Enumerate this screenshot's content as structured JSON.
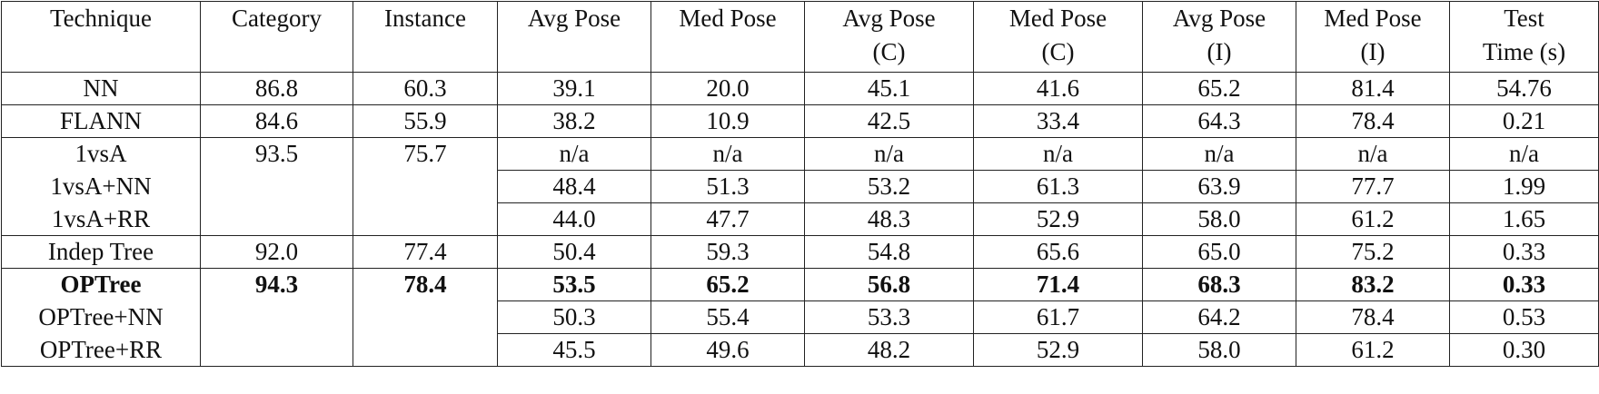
{
  "table": {
    "header": [
      [
        "Technique"
      ],
      [
        "Category"
      ],
      [
        "Instance"
      ],
      [
        "Avg Pose"
      ],
      [
        "Med Pose"
      ],
      [
        "Avg Pose",
        "(C)"
      ],
      [
        "Med Pose",
        "(C)"
      ],
      [
        "Avg Pose",
        "(I)"
      ],
      [
        "Med Pose",
        "(I)"
      ],
      [
        "Test",
        "Time (s)"
      ]
    ],
    "rows": [
      {
        "cells": [
          "NN",
          "86.8",
          "60.3",
          "39.1",
          "20.0",
          "45.1",
          "41.6",
          "65.2",
          "81.4",
          "54.76"
        ]
      },
      {
        "cells": [
          "FLANN",
          "84.6",
          "55.9",
          "38.2",
          "10.9",
          "42.5",
          "33.4",
          "64.3",
          "78.4",
          "0.21"
        ]
      },
      {
        "cells": [
          "1vsA",
          "93.5",
          "75.7",
          "n/a",
          "n/a",
          "n/a",
          "n/a",
          "n/a",
          "n/a",
          "n/a"
        ]
      },
      {
        "cells": [
          "1vsA+NN",
          null,
          null,
          "48.4",
          "51.3",
          "53.2",
          "61.3",
          "63.9",
          "77.7",
          "1.99"
        ]
      },
      {
        "cells": [
          "1vsA+RR",
          null,
          null,
          "44.0",
          "47.7",
          "48.3",
          "52.9",
          "58.0",
          "61.2",
          "1.65"
        ]
      },
      {
        "cells": [
          "Indep Tree",
          "92.0",
          "77.4",
          "50.4",
          "59.3",
          "54.8",
          "65.6",
          "65.0",
          "75.2",
          "0.33"
        ]
      },
      {
        "cells": [
          "OPTree",
          "94.3",
          "78.4",
          "53.5",
          "65.2",
          "56.8",
          "71.4",
          "68.3",
          "83.2",
          "0.33"
        ],
        "bold": true
      },
      {
        "cells": [
          "OPTree+NN",
          null,
          null,
          "50.3",
          "55.4",
          "53.3",
          "61.7",
          "64.2",
          "78.4",
          "0.53"
        ]
      },
      {
        "cells": [
          "OPTree+RR",
          null,
          null,
          "45.5",
          "49.6",
          "48.2",
          "52.9",
          "58.0",
          "61.2",
          "0.30"
        ]
      }
    ]
  }
}
